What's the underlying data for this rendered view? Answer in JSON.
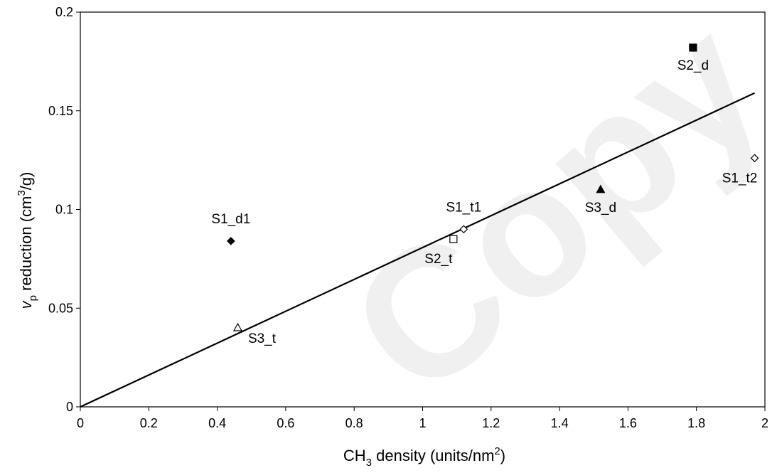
{
  "watermark": {
    "text": "Copy",
    "color": "#f0f0f0"
  },
  "chart_data": {
    "type": "scatter",
    "title": "",
    "xlabel": {
      "main": "CH",
      "sub": "3",
      "rest": " density (units/nm",
      "sup": "2",
      "end": ")"
    },
    "ylabel": {
      "italic": "v",
      "sub": "p",
      "rest": " reduction (cm",
      "sup": "3",
      "end": "/g)"
    },
    "xlim": [
      0,
      2
    ],
    "ylim": [
      0,
      0.2
    ],
    "x_ticks": [
      0,
      0.2,
      0.4,
      0.6,
      0.8,
      1,
      1.2,
      1.4,
      1.6,
      1.8,
      2
    ],
    "x_tick_labels": [
      "0",
      "0.2",
      "0.4",
      "0.6",
      "0.8",
      "1",
      "1.2",
      "1.4",
      "1.6",
      "1.8",
      "2"
    ],
    "y_ticks": [
      0,
      0.05,
      0.1,
      0.15,
      0.2
    ],
    "y_tick_labels": [
      "0",
      "0.05",
      "0.1",
      "0.15",
      "0.2"
    ],
    "grid": false,
    "points": [
      {
        "label": "S1_d1",
        "x": 0.44,
        "y": 0.084,
        "marker": "diamond",
        "filled": true,
        "label_pos": "above"
      },
      {
        "label": "S1_t1",
        "x": 1.12,
        "y": 0.09,
        "marker": "diamond",
        "filled": false,
        "label_pos": "above"
      },
      {
        "label": "S1_t2",
        "x": 1.97,
        "y": 0.126,
        "marker": "diamond",
        "filled": false,
        "label_pos": "below-left"
      },
      {
        "label": "S2_d",
        "x": 1.79,
        "y": 0.182,
        "marker": "square",
        "filled": true,
        "label_pos": "below"
      },
      {
        "label": "S2_t",
        "x": 1.09,
        "y": 0.085,
        "marker": "square",
        "filled": false,
        "label_pos": "below-left"
      },
      {
        "label": "S3_d",
        "x": 1.52,
        "y": 0.11,
        "marker": "triangle",
        "filled": true,
        "label_pos": "below"
      },
      {
        "label": "S3_t",
        "x": 0.46,
        "y": 0.04,
        "marker": "triangle",
        "filled": false,
        "label_pos": "below-right"
      }
    ],
    "trendline": {
      "x": [
        0,
        1.97
      ],
      "y": [
        0,
        0.159
      ]
    }
  }
}
